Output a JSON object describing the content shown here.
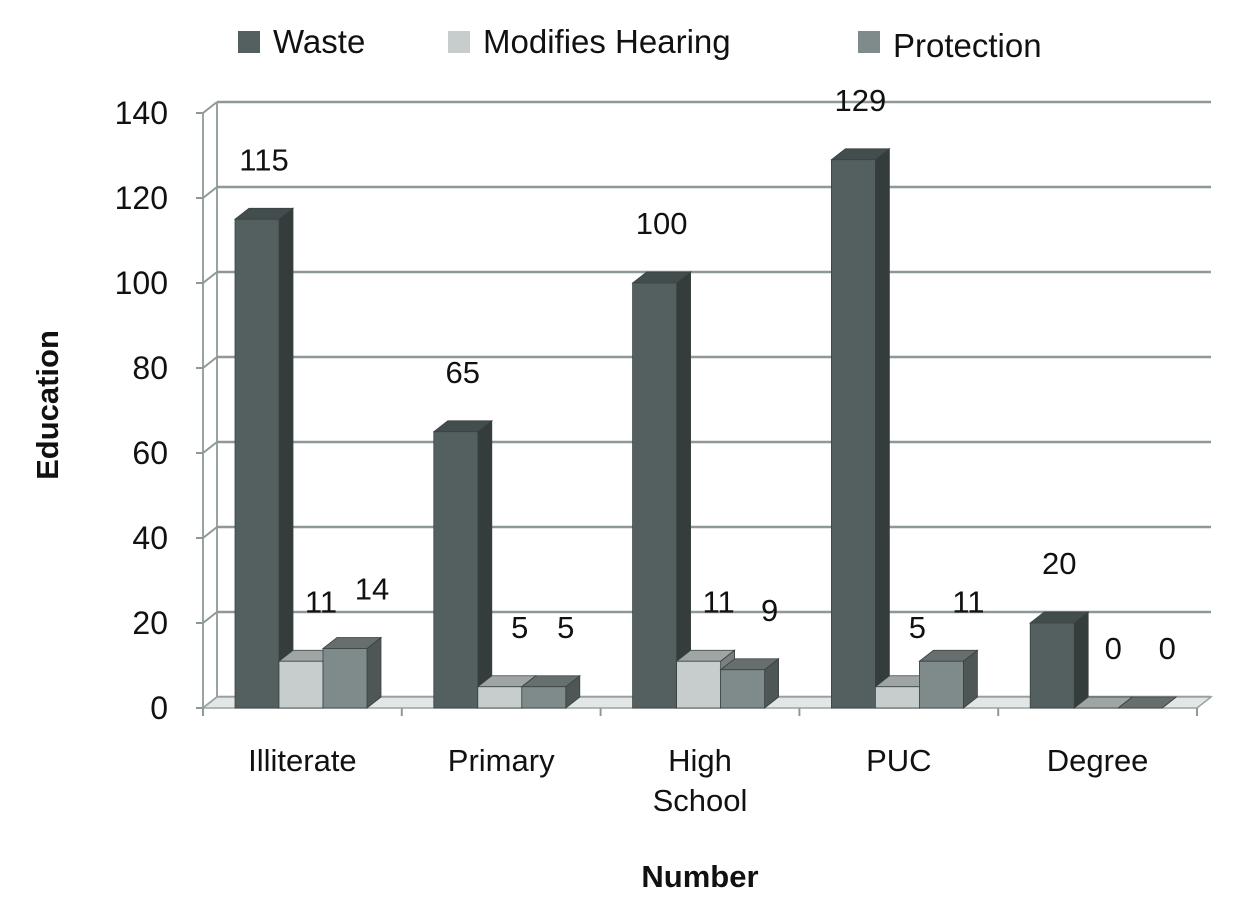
{
  "chart_data": {
    "type": "bar",
    "title": "",
    "xlabel": "Number",
    "ylabel": "Education",
    "ylim": [
      0,
      140
    ],
    "yticks": [
      0,
      20,
      40,
      60,
      80,
      100,
      120,
      140
    ],
    "grid": true,
    "legend_position": "top",
    "categories": [
      [
        "Illiterate"
      ],
      [
        "Primary"
      ],
      [
        "High",
        "School"
      ],
      [
        "PUC"
      ],
      [
        "Degree"
      ]
    ],
    "series": [
      {
        "name": "Waste",
        "values": [
          115,
          65,
          100,
          129,
          20
        ],
        "color": "#546060"
      },
      {
        "name": "Modifies Hearing",
        "values": [
          11,
          5,
          11,
          5,
          0
        ],
        "color": "#c7cdcd"
      },
      {
        "name": "Protection",
        "values": [
          14,
          5,
          9,
          11,
          0
        ],
        "color": "#7f8a8a"
      }
    ]
  }
}
